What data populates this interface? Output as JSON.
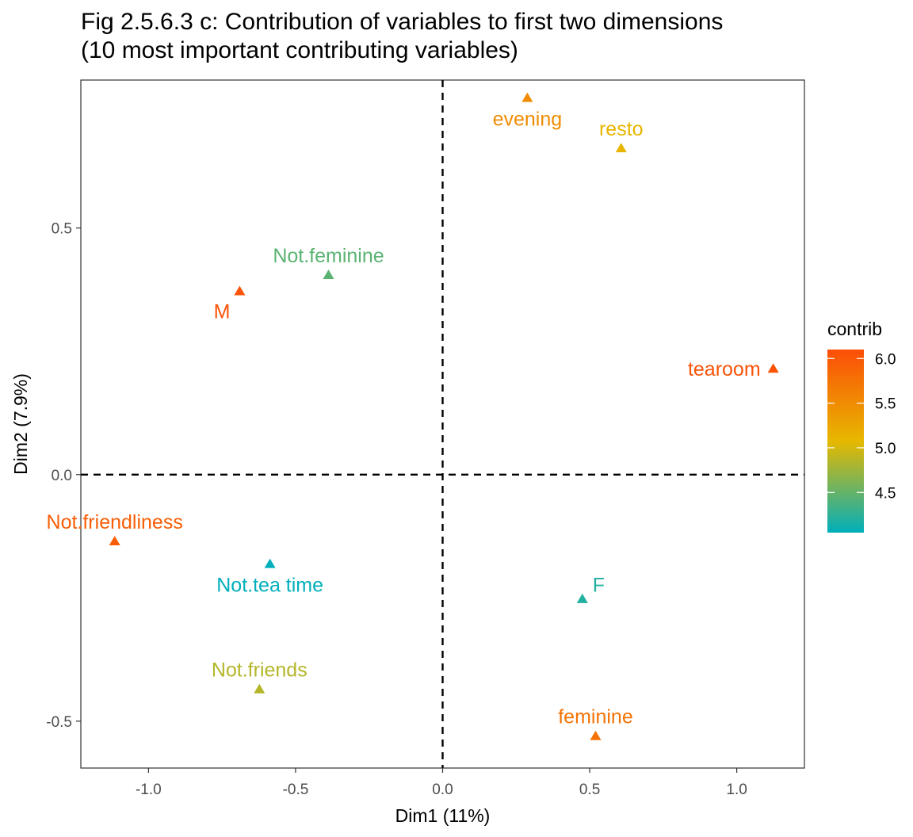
{
  "chart_data": {
    "type": "scatter",
    "title_lines": [
      "Fig 2.5.6.3 c: Contribution of variables to first two dimensions",
      "(10 most important contributing variables)"
    ],
    "xlabel": "Dim1 (11%)",
    "ylabel": "Dim2 (7.9%)",
    "xlim": [
      -1.23,
      1.23
    ],
    "ylim": [
      -0.595,
      0.8
    ],
    "xticks": [
      -1.0,
      -0.5,
      0.0,
      0.5,
      1.0
    ],
    "xtick_labels": [
      "-1.0",
      "-0.5",
      "0.0",
      "0.5",
      "1.0"
    ],
    "yticks": [
      -0.5,
      0.0,
      0.5
    ],
    "ytick_labels": [
      "-0.5",
      "0.0",
      "0.5"
    ],
    "reference_lines": {
      "x": 0,
      "y": 0,
      "style": "dashed"
    },
    "grid": false,
    "marker": "triangle",
    "points": [
      {
        "label": "evening",
        "x": 0.288,
        "y": 0.764,
        "contrib": 5.5,
        "label_pos": "below"
      },
      {
        "label": "resto",
        "x": 0.607,
        "y": 0.662,
        "contrib": 5.1,
        "label_pos": "above"
      },
      {
        "label": "Not.feminine",
        "x": -0.388,
        "y": 0.405,
        "contrib": 4.45,
        "label_pos": "above"
      },
      {
        "label": "M",
        "x": -0.69,
        "y": 0.372,
        "contrib": 6.05,
        "label_pos": "below-left"
      },
      {
        "label": "tearoom",
        "x": 1.124,
        "y": 0.215,
        "contrib": 6.05,
        "label_pos": "left"
      },
      {
        "label": "Not.friendliness",
        "x": -1.115,
        "y": -0.135,
        "contrib": 5.95,
        "label_pos": "above"
      },
      {
        "label": "Not.tea time",
        "x": -0.587,
        "y": -0.181,
        "contrib": 4.05,
        "label_pos": "below"
      },
      {
        "label": "F",
        "x": 0.475,
        "y": -0.252,
        "contrib": 4.2,
        "label_pos": "above-right"
      },
      {
        "label": "Not.friends",
        "x": -0.623,
        "y": -0.435,
        "contrib": 4.85,
        "label_pos": "above"
      },
      {
        "label": "feminine",
        "x": 0.52,
        "y": -0.53,
        "contrib": 5.75,
        "label_pos": "above"
      }
    ],
    "legend": {
      "title": "contrib",
      "placement": "right",
      "min": 4.05,
      "max": 6.1,
      "ticks": [
        6.0,
        5.5,
        5.0,
        4.5
      ],
      "tick_labels": [
        "6.0",
        "5.5",
        "5.0",
        "4.5"
      ],
      "gradient_colors": [
        "#00AFBB",
        "#E7B800",
        "#FC4E07"
      ]
    }
  }
}
